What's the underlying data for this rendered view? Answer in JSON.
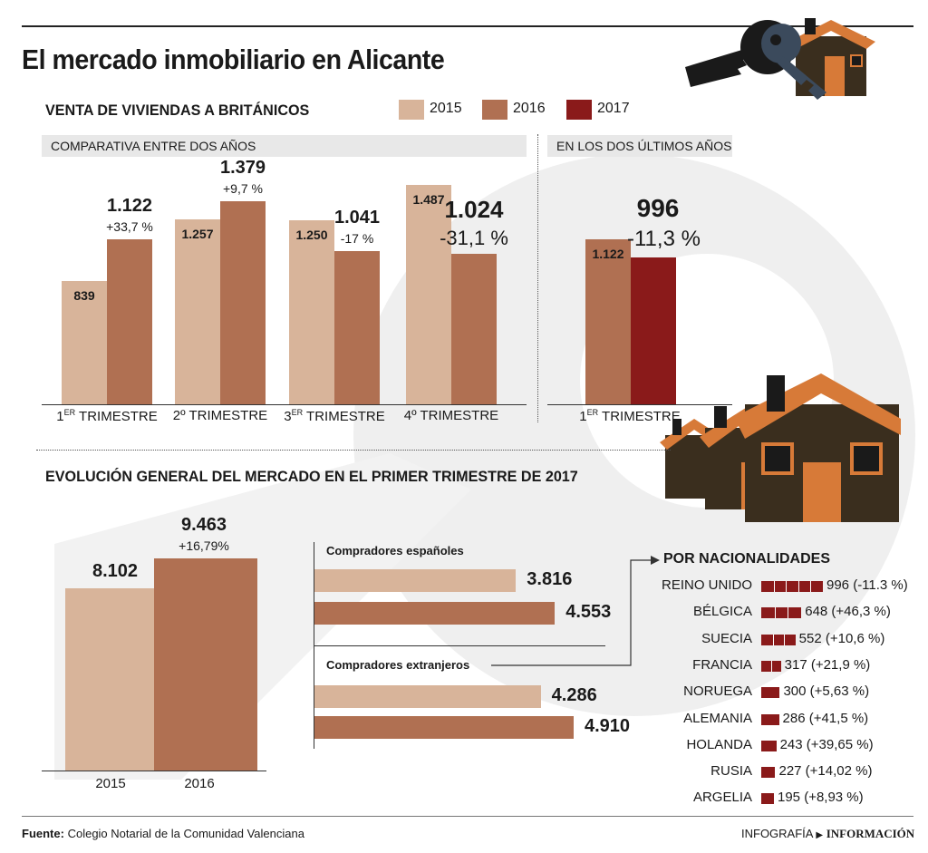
{
  "title": "El mercado inmobiliario en Alicante",
  "section1_title": "VENTA DE VIVIENDAS A BRITÁNICOS",
  "legend": [
    {
      "label": "2015",
      "color": "#d8b49a"
    },
    {
      "label": "2016",
      "color": "#b07052"
    },
    {
      "label": "2017",
      "color": "#8a1a1a"
    }
  ],
  "subhead_left": "COMPARATIVA ENTRE DOS AÑOS",
  "subhead_right": "EN LOS DOS ÚLTIMOS AÑOS",
  "section2_title": "EVOLUCIÓN GENERAL DEL MERCADO EN EL PRIMER TRIMESTRE DE 2017",
  "buyers_es_title": "Compradores españoles",
  "buyers_ext_title": "Compradores extranjeros",
  "nat_title": "POR NACIONALIDADES",
  "footer_source_label": "Fuente:",
  "footer_source": "Colegio Notarial de la Comunidad Valenciana",
  "footer_brand_1": "INFOGRAFÍA",
  "footer_brand_2": "INFORMACIÓN",
  "chart_data": [
    {
      "type": "bar",
      "categories": [
        {
          "main": "1",
          "sup": "ER",
          "rest": " TRIMESTRE"
        },
        {
          "main": "2º TRIMESTRE",
          "sup": "",
          "rest": ""
        },
        {
          "main": "3",
          "sup": "ER",
          "rest": " TRIMESTRE"
        },
        {
          "main": "4º TRIMESTRE",
          "sup": "",
          "rest": ""
        }
      ],
      "series": [
        {
          "name": "2015",
          "values": [
            839,
            1257,
            1250,
            1487
          ],
          "labels": [
            "839",
            "1.257",
            "1.250",
            "1.487"
          ]
        },
        {
          "name": "2016",
          "values": [
            1122,
            1379,
            1041,
            1024
          ],
          "labels": [
            "1.122",
            "1.379",
            "1.041",
            "1.024"
          ],
          "changes": [
            "+33,7 %",
            "+9,7 %",
            "-17 %",
            "-31,1 %"
          ]
        }
      ],
      "ylim": [
        0,
        1600
      ]
    },
    {
      "type": "bar",
      "categories": [
        {
          "main": "1",
          "sup": "ER",
          "rest": " TRIMESTRE"
        }
      ],
      "series": [
        {
          "name": "2016",
          "values": [
            1122
          ],
          "labels": [
            "1.122"
          ]
        },
        {
          "name": "2017",
          "values": [
            996
          ],
          "labels": [
            "996"
          ],
          "changes": [
            "-11,3 %"
          ]
        }
      ],
      "ylim": [
        0,
        1600
      ]
    },
    {
      "type": "bar",
      "categories": [
        "2015",
        "2016"
      ],
      "values": [
        8102,
        9463
      ],
      "labels": [
        "8.102",
        "9.463"
      ],
      "changes": [
        "",
        "+16,79%"
      ],
      "ylim": [
        0,
        10500
      ]
    },
    {
      "type": "bar",
      "orientation": "horizontal",
      "groups": [
        {
          "name": "Compradores españoles",
          "values": [
            3816,
            4553
          ],
          "labels": [
            "3.816",
            "4.553"
          ]
        },
        {
          "name": "Compradores extranjeros",
          "values": [
            4286,
            4910
          ],
          "labels": [
            "4.286",
            "4.910"
          ]
        }
      ],
      "series_order": [
        "2015",
        "2016"
      ],
      "xlim": [
        0,
        5500
      ]
    },
    {
      "type": "bar",
      "orientation": "horizontal",
      "title": "POR NACIONALIDADES",
      "categories": [
        "REINO UNIDO",
        "BÉLGICA",
        "SUECIA",
        "FRANCIA",
        "NORUEGA",
        "ALEMANIA",
        "HOLANDA",
        "RUSIA",
        "ARGELIA"
      ],
      "values": [
        996,
        648,
        552,
        317,
        300,
        286,
        243,
        227,
        195
      ],
      "labels": [
        "996 (-11.3 %)",
        "648 (+46,3 %)",
        "552 (+10,6 %)",
        "317 (+21,9 %)",
        "300 (+5,63 %)",
        "286 (+41,5 %)",
        "243 (+39,65 %)",
        "227 (+14,02 %)",
        "195 (+8,93 %)"
      ],
      "color": "#8a1a1a"
    }
  ]
}
